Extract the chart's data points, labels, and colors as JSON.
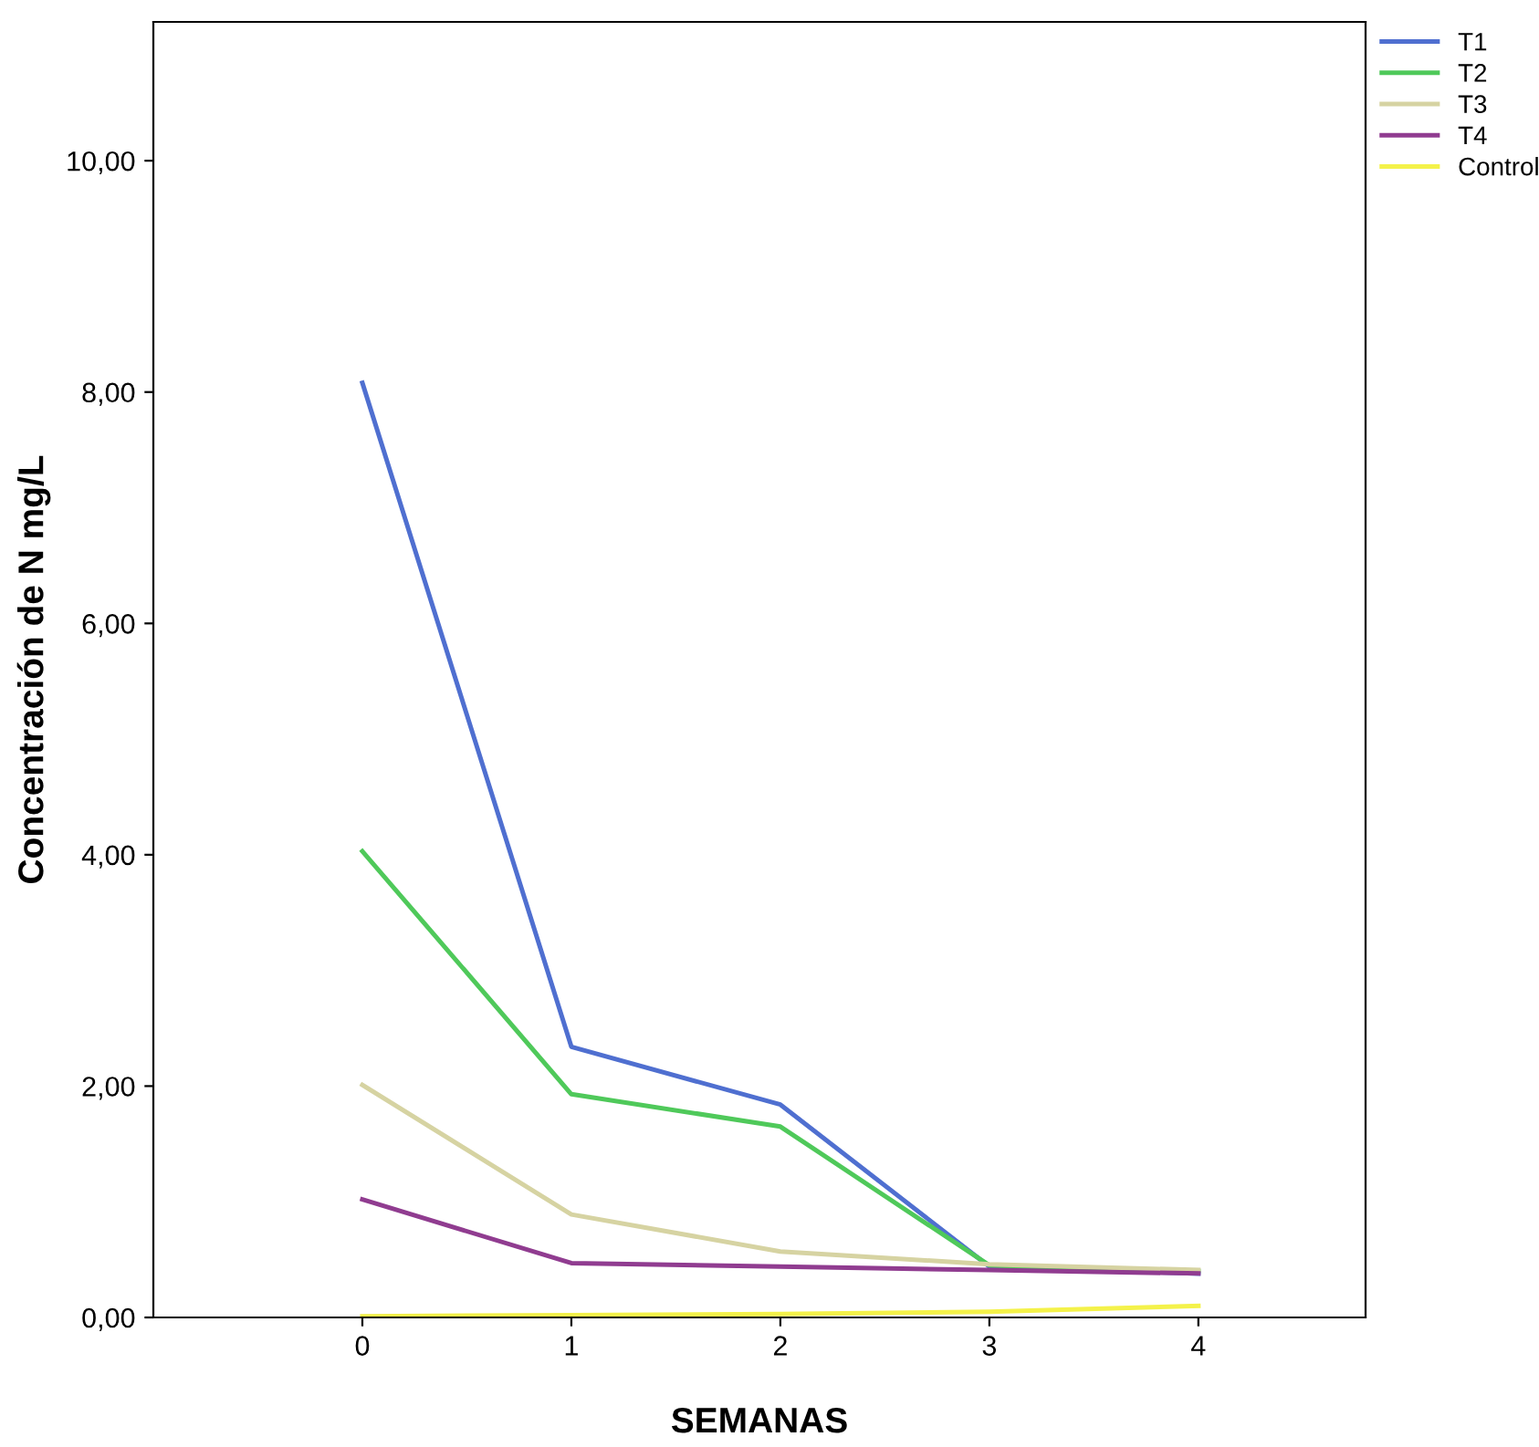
{
  "chart_data": {
    "type": "line",
    "xlabel": "SEMANAS",
    "ylabel": "Concentración de N mg/L",
    "x": [
      0,
      1,
      2,
      3,
      4
    ],
    "series": [
      {
        "name": "T1",
        "color": "#4f6fd0",
        "values": [
          8.08,
          2.34,
          1.84,
          0.44,
          0.38
        ]
      },
      {
        "name": "T2",
        "color": "#4fc95a",
        "values": [
          4.03,
          1.93,
          1.65,
          0.45,
          0.4
        ]
      },
      {
        "name": "T3",
        "color": "#d6d3a2",
        "values": [
          2.01,
          0.89,
          0.57,
          0.46,
          0.41
        ]
      },
      {
        "name": "T4",
        "color": "#903c90",
        "values": [
          1.02,
          0.47,
          0.44,
          0.41,
          0.38
        ]
      },
      {
        "name": "Control",
        "color": "#f4f24a",
        "values": [
          0.01,
          0.02,
          0.03,
          0.05,
          0.1
        ]
      }
    ],
    "xlim": [
      -1.0,
      4.8
    ],
    "xticks": [
      0,
      1,
      2,
      3,
      4
    ],
    "ylim": [
      0,
      11.2
    ],
    "yticks": [
      {
        "value": 0,
        "label": "0,00"
      },
      {
        "value": 2,
        "label": "2,00"
      },
      {
        "value": 4,
        "label": "4,00"
      },
      {
        "value": 6,
        "label": "6,00"
      },
      {
        "value": 8,
        "label": "8,00"
      },
      {
        "value": 10,
        "label": "10,00"
      }
    ],
    "grid": false,
    "legend": "top right",
    "marker": "none",
    "line_style": "solid"
  }
}
